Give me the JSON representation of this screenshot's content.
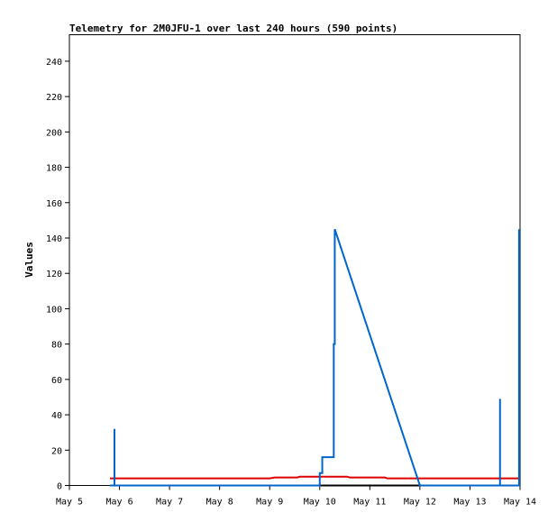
{
  "chart_data": {
    "type": "line",
    "title": "Telemetry for 2M0JFU-1 over last 240 hours (590 points)",
    "xlabel": "",
    "ylabel": "Values",
    "ylim": [
      0,
      255
    ],
    "xlim": [
      "May 5",
      "May 14"
    ],
    "y_ticks": [
      "0",
      "20",
      "40",
      "60",
      "80",
      "100",
      "120",
      "140",
      "160",
      "180",
      "200",
      "220",
      "240"
    ],
    "x_ticks": [
      "May 5",
      "May 6",
      "May 7",
      "May 8",
      "May 9",
      "May 10",
      "May 11",
      "May 12",
      "May 13",
      "May 14"
    ],
    "grid": false,
    "legend": "none",
    "series": [
      {
        "color": "#000000",
        "points": [
          [
            0.81,
            0
          ],
          [
            9.0,
            0
          ]
        ]
      },
      {
        "color": "#dd0000",
        "points": [
          [
            0.81,
            4
          ],
          [
            4.0,
            4
          ],
          [
            4.1,
            4.5
          ],
          [
            4.55,
            4.5
          ],
          [
            4.6,
            5
          ],
          [
            5.55,
            5
          ],
          [
            5.6,
            4.5
          ],
          [
            6.3,
            4.5
          ],
          [
            6.35,
            4
          ],
          [
            9.0,
            4
          ]
        ]
      },
      {
        "color": "#0066cc",
        "points": [
          [
            0.81,
            0
          ],
          [
            0.9,
            0
          ],
          [
            0.9,
            32
          ],
          [
            0.9,
            0
          ],
          [
            5.0,
            0
          ],
          [
            5.0,
            7
          ],
          [
            5.05,
            7
          ],
          [
            5.05,
            16
          ],
          [
            5.28,
            16
          ],
          [
            5.28,
            80
          ],
          [
            5.3,
            80
          ],
          [
            5.3,
            145
          ],
          [
            7.0,
            0
          ],
          [
            8.6,
            0
          ],
          [
            8.6,
            49
          ],
          [
            8.6,
            0
          ],
          [
            8.98,
            0
          ],
          [
            8.98,
            145
          ],
          [
            8.98,
            0
          ],
          [
            9.0,
            0
          ]
        ]
      }
    ]
  }
}
